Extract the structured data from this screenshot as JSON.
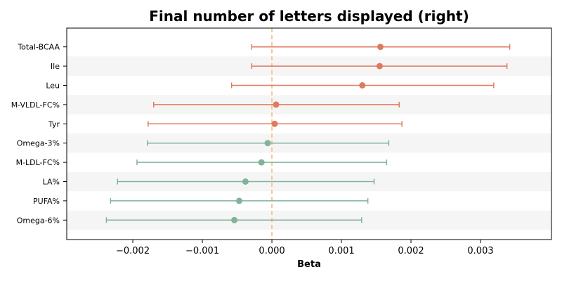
{
  "chart_data": {
    "type": "forest",
    "title": "Final number of letters displayed (right)",
    "xlabel": "Beta",
    "ylabel": "",
    "xlim": [
      -0.00295,
      0.00402
    ],
    "xticks": [
      -0.002,
      -0.001,
      0.0,
      0.001,
      0.002,
      0.003
    ],
    "xtick_labels": [
      "−0.002",
      "−0.001",
      "0.000",
      "0.001",
      "0.002",
      "0.003"
    ],
    "reference_line": 0.0,
    "reference_color": "#f2c48a",
    "positive_color": "#e07a5f",
    "negative_color": "#81b29a",
    "band_color": "#f5f5f5",
    "grid": false,
    "rows": [
      {
        "label": "Total-BCAA",
        "beta": 0.00156,
        "ci_low": -0.00029,
        "ci_high": 0.00342
      },
      {
        "label": "Ile",
        "beta": 0.00155,
        "ci_low": -0.00029,
        "ci_high": 0.00338
      },
      {
        "label": "Leu",
        "beta": 0.0013,
        "ci_low": -0.00058,
        "ci_high": 0.00319
      },
      {
        "label": "M-VLDL-FC%",
        "beta": 6e-05,
        "ci_low": -0.0017,
        "ci_high": 0.00183
      },
      {
        "label": "Tyr",
        "beta": 4e-05,
        "ci_low": -0.00178,
        "ci_high": 0.00187
      },
      {
        "label": "Omega-3%",
        "beta": -6e-05,
        "ci_low": -0.00179,
        "ci_high": 0.00168
      },
      {
        "label": "M-LDL-FC%",
        "beta": -0.00015,
        "ci_low": -0.00194,
        "ci_high": 0.00165
      },
      {
        "label": "LA%",
        "beta": -0.00038,
        "ci_low": -0.00222,
        "ci_high": 0.00147
      },
      {
        "label": "PUFA%",
        "beta": -0.00047,
        "ci_low": -0.00232,
        "ci_high": 0.00138
      },
      {
        "label": "Omega-6%",
        "beta": -0.00054,
        "ci_low": -0.00238,
        "ci_high": 0.00129
      }
    ]
  }
}
